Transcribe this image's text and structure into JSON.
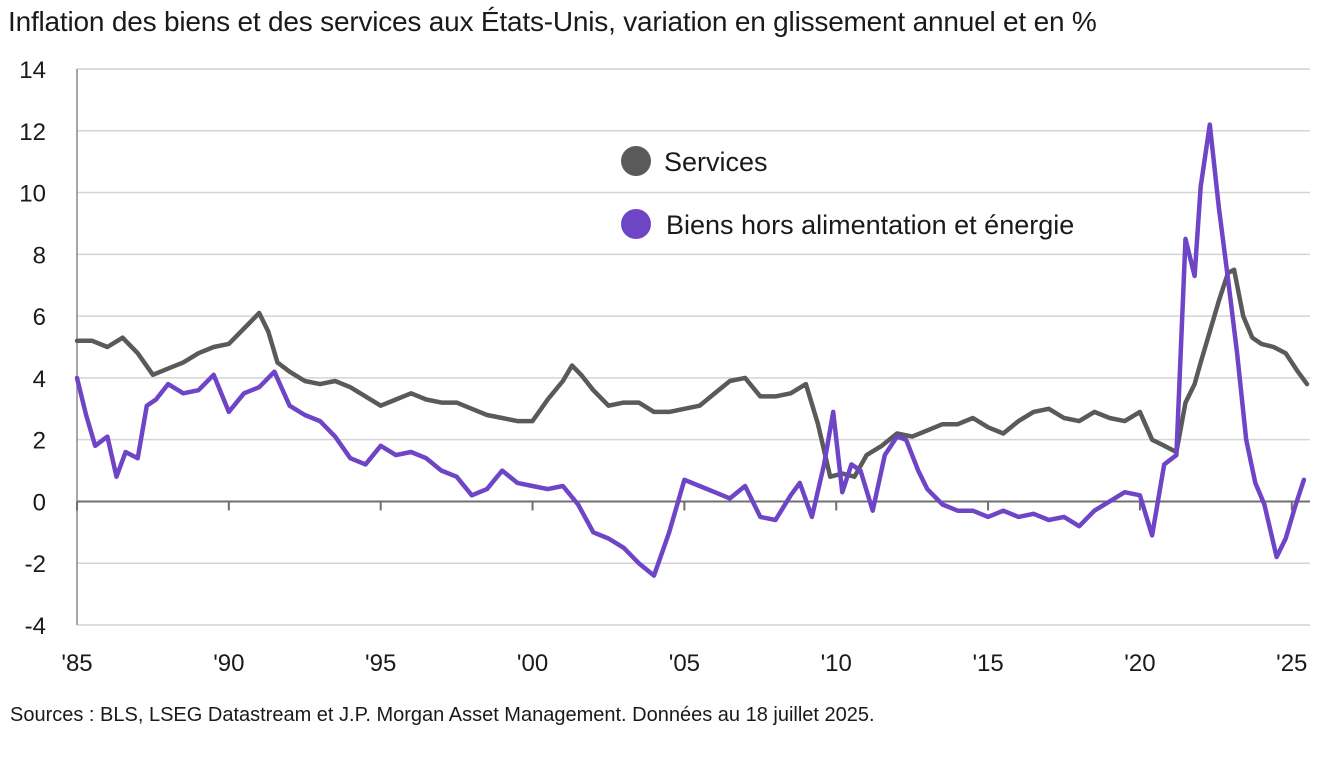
{
  "title": "Inflation des biens et des services aux États-Unis, variation en glissement annuel et en %",
  "source": "Sources : BLS, LSEG Datastream et J.P. Morgan Asset Management. Données au 18 juillet 2025.",
  "chart_data": {
    "type": "line",
    "x_tick_labels": [
      "'85",
      "'90",
      "'95",
      "'00",
      "'05",
      "'10",
      "'15",
      "'20",
      "'25"
    ],
    "x_tick_years": [
      1985,
      1990,
      1995,
      2000,
      2005,
      2010,
      2015,
      2020,
      2025
    ],
    "xlim": [
      1985,
      2025.6
    ],
    "ylim": [
      -4,
      14
    ],
    "y_ticks": [
      -4,
      -2,
      0,
      2,
      4,
      6,
      8,
      10,
      12,
      14
    ],
    "y_tick_labels": [
      "-4",
      "-2",
      "0",
      "2",
      "4",
      "6",
      "8",
      "10",
      "12",
      "14"
    ],
    "grid": true,
    "legend_position": "upper-center",
    "series": [
      {
        "name": "Services",
        "color": "#5a5a5a",
        "x": [
          1985.0,
          1985.5,
          1986.0,
          1986.5,
          1987.0,
          1987.5,
          1988.0,
          1988.5,
          1989.0,
          1989.5,
          1990.0,
          1990.5,
          1991.0,
          1991.3,
          1991.6,
          1992.0,
          1992.5,
          1993.0,
          1993.5,
          1994.0,
          1994.5,
          1995.0,
          1995.5,
          1996.0,
          1996.5,
          1997.0,
          1997.5,
          1998.0,
          1998.5,
          1999.0,
          1999.5,
          2000.0,
          2000.5,
          2001.0,
          2001.3,
          2001.6,
          2002.0,
          2002.5,
          2003.0,
          2003.5,
          2004.0,
          2004.5,
          2005.0,
          2005.5,
          2006.0,
          2006.5,
          2007.0,
          2007.5,
          2008.0,
          2008.5,
          2009.0,
          2009.4,
          2009.8,
          2010.2,
          2010.6,
          2011.0,
          2011.5,
          2012.0,
          2012.5,
          2013.0,
          2013.5,
          2014.0,
          2014.5,
          2015.0,
          2015.5,
          2016.0,
          2016.5,
          2017.0,
          2017.5,
          2018.0,
          2018.5,
          2019.0,
          2019.5,
          2020.0,
          2020.4,
          2020.8,
          2021.2,
          2021.5,
          2021.8,
          2022.0,
          2022.3,
          2022.6,
          2022.9,
          2023.1,
          2023.4,
          2023.7,
          2024.0,
          2024.4,
          2024.8,
          2025.2,
          2025.5
        ],
        "values": [
          5.2,
          5.2,
          5.0,
          5.3,
          4.8,
          4.1,
          4.3,
          4.5,
          4.8,
          5.0,
          5.1,
          5.6,
          6.1,
          5.5,
          4.5,
          4.2,
          3.9,
          3.8,
          3.9,
          3.7,
          3.4,
          3.1,
          3.3,
          3.5,
          3.3,
          3.2,
          3.2,
          3.0,
          2.8,
          2.7,
          2.6,
          2.6,
          3.3,
          3.9,
          4.4,
          4.1,
          3.6,
          3.1,
          3.2,
          3.2,
          2.9,
          2.9,
          3.0,
          3.1,
          3.5,
          3.9,
          4.0,
          3.4,
          3.4,
          3.5,
          3.8,
          2.5,
          0.8,
          0.9,
          0.8,
          1.5,
          1.8,
          2.2,
          2.1,
          2.3,
          2.5,
          2.5,
          2.7,
          2.4,
          2.2,
          2.6,
          2.9,
          3.0,
          2.7,
          2.6,
          2.9,
          2.7,
          2.6,
          2.9,
          2.0,
          1.8,
          1.6,
          3.2,
          3.8,
          4.5,
          5.5,
          6.5,
          7.4,
          7.5,
          6.0,
          5.3,
          5.1,
          5.0,
          4.8,
          4.2,
          3.8
        ]
      },
      {
        "name": "Biens hors alimentation et énergie",
        "color": "#6e45c6",
        "x": [
          1985.0,
          1985.3,
          1985.6,
          1986.0,
          1986.3,
          1986.6,
          1987.0,
          1987.3,
          1987.6,
          1988.0,
          1988.5,
          1989.0,
          1989.5,
          1990.0,
          1990.5,
          1991.0,
          1991.5,
          1992.0,
          1992.5,
          1993.0,
          1993.5,
          1994.0,
          1994.5,
          1995.0,
          1995.5,
          1996.0,
          1996.5,
          1997.0,
          1997.5,
          1998.0,
          1998.5,
          1999.0,
          1999.5,
          2000.0,
          2000.5,
          2001.0,
          2001.5,
          2002.0,
          2002.5,
          2003.0,
          2003.5,
          2004.0,
          2004.5,
          2005.0,
          2005.5,
          2006.0,
          2006.5,
          2007.0,
          2007.5,
          2008.0,
          2008.5,
          2008.8,
          2009.2,
          2009.6,
          2009.9,
          2010.2,
          2010.5,
          2010.8,
          2011.2,
          2011.6,
          2012.0,
          2012.3,
          2012.7,
          2013.0,
          2013.5,
          2014.0,
          2014.5,
          2015.0,
          2015.5,
          2016.0,
          2016.5,
          2017.0,
          2017.5,
          2018.0,
          2018.5,
          2019.0,
          2019.5,
          2020.0,
          2020.4,
          2020.8,
          2021.2,
          2021.5,
          2021.8,
          2022.0,
          2022.3,
          2022.6,
          2022.9,
          2023.2,
          2023.5,
          2023.8,
          2024.1,
          2024.5,
          2024.8,
          2025.1,
          2025.4
        ],
        "values": [
          4.0,
          2.8,
          1.8,
          2.1,
          0.8,
          1.6,
          1.4,
          3.1,
          3.3,
          3.8,
          3.5,
          3.6,
          4.1,
          2.9,
          3.5,
          3.7,
          4.2,
          3.1,
          2.8,
          2.6,
          2.1,
          1.4,
          1.2,
          1.8,
          1.5,
          1.6,
          1.4,
          1.0,
          0.8,
          0.2,
          0.4,
          1.0,
          0.6,
          0.5,
          0.4,
          0.5,
          -0.1,
          -1.0,
          -1.2,
          -1.5,
          -2.0,
          -2.4,
          -1.0,
          0.7,
          0.5,
          0.3,
          0.1,
          0.5,
          -0.5,
          -0.6,
          0.2,
          0.6,
          -0.5,
          1.2,
          2.9,
          0.3,
          1.2,
          1.0,
          -0.3,
          1.5,
          2.1,
          2.0,
          1.0,
          0.4,
          -0.1,
          -0.3,
          -0.3,
          -0.5,
          -0.3,
          -0.5,
          -0.4,
          -0.6,
          -0.5,
          -0.8,
          -0.3,
          0.0,
          0.3,
          0.2,
          -1.1,
          1.2,
          1.5,
          8.5,
          7.3,
          10.2,
          12.2,
          9.5,
          7.2,
          4.8,
          2.0,
          0.6,
          -0.1,
          -1.8,
          -1.2,
          -0.2,
          0.7
        ]
      }
    ]
  }
}
